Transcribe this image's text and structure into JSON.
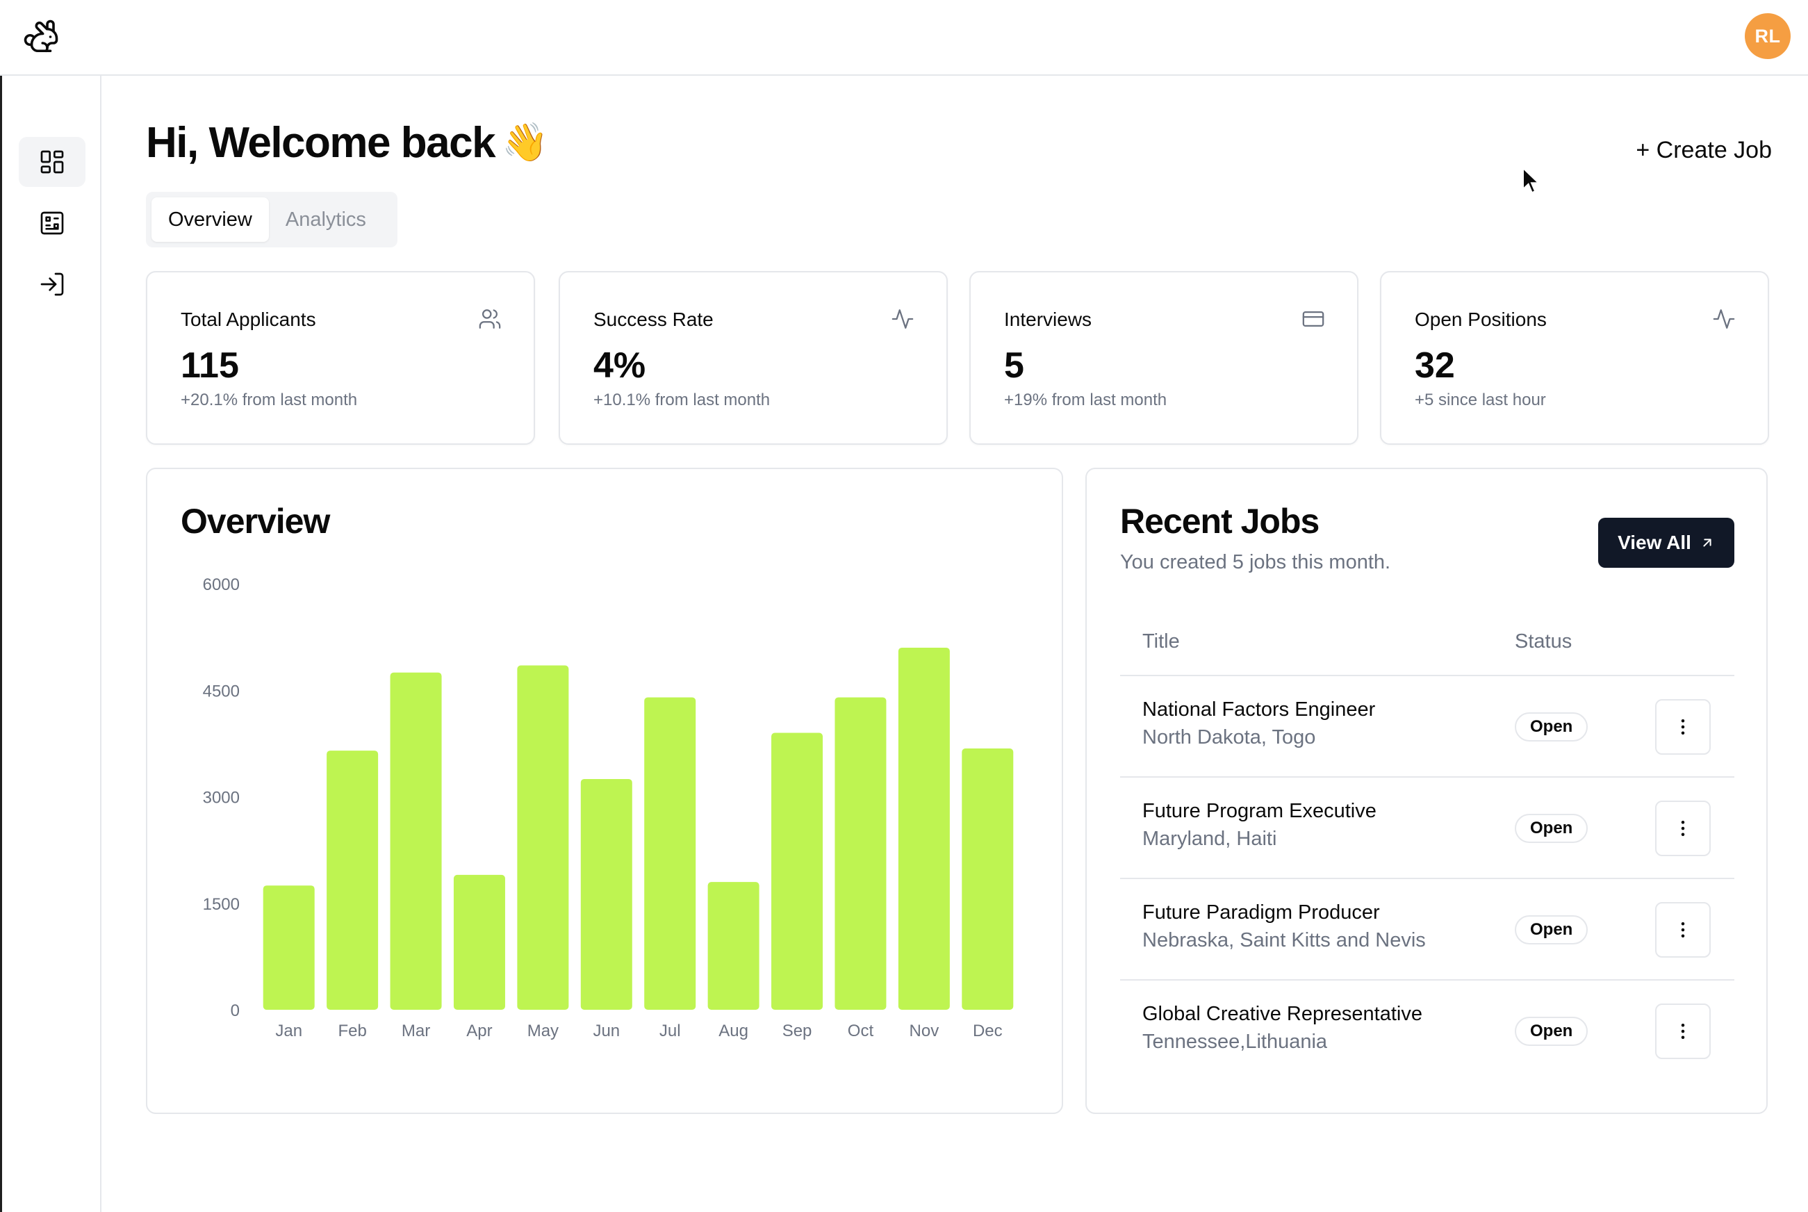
{
  "header": {
    "avatar_initials": "RL"
  },
  "sidebar": {
    "items": [
      {
        "name": "dashboard",
        "icon": "layout-dashboard-icon",
        "active": true
      },
      {
        "name": "jobs",
        "icon": "clipboard-icon",
        "active": false
      },
      {
        "name": "logout",
        "icon": "log-in-icon",
        "active": false
      }
    ]
  },
  "main": {
    "greeting": "Hi, Welcome back",
    "greeting_emoji": "👋",
    "create_job_label": "+ Create Job",
    "tabs": [
      {
        "label": "Overview",
        "active": true
      },
      {
        "label": "Analytics",
        "active": false
      }
    ]
  },
  "stats": [
    {
      "title": "Total Applicants",
      "value": "115",
      "sub": "+20.1% from last month",
      "icon": "users-icon"
    },
    {
      "title": "Success Rate",
      "value": "4%",
      "sub": "+10.1% from last month",
      "icon": "activity-icon"
    },
    {
      "title": "Interviews",
      "value": "5",
      "sub": "+19% from last month",
      "icon": "credit-card-icon"
    },
    {
      "title": "Open Positions",
      "value": "32",
      "sub": "+5 since last hour",
      "icon": "activity-icon"
    }
  ],
  "overview": {
    "title": "Overview"
  },
  "chart_data": {
    "type": "bar",
    "categories": [
      "Jan",
      "Feb",
      "Mar",
      "Apr",
      "May",
      "Jun",
      "Jul",
      "Aug",
      "Sep",
      "Oct",
      "Nov",
      "Dec"
    ],
    "values": [
      1750,
      3650,
      4750,
      1900,
      4850,
      3250,
      4400,
      1800,
      3900,
      4400,
      5100,
      3680
    ],
    "ylim": [
      0,
      6000
    ],
    "yticks": [
      "0",
      "1500",
      "3000",
      "4500",
      "6000"
    ],
    "bar_color": "#bef451",
    "grid": false,
    "title": "",
    "xlabel": "",
    "ylabel": ""
  },
  "recent_jobs": {
    "title": "Recent Jobs",
    "subtitle": "You created 5 jobs this month.",
    "view_all_label": "View All",
    "columns": [
      "Title",
      "Status"
    ],
    "rows": [
      {
        "title": "National Factors Engineer",
        "location": "North Dakota, Togo",
        "status": "Open"
      },
      {
        "title": "Future Program Executive",
        "location": "Maryland, Haiti",
        "status": "Open"
      },
      {
        "title": "Future Paradigm Producer",
        "location": "Nebraska, Saint Kitts and Nevis",
        "status": "Open"
      },
      {
        "title": "Global Creative Representative",
        "location": "Tennessee,Lithuania",
        "status": "Open"
      }
    ]
  }
}
